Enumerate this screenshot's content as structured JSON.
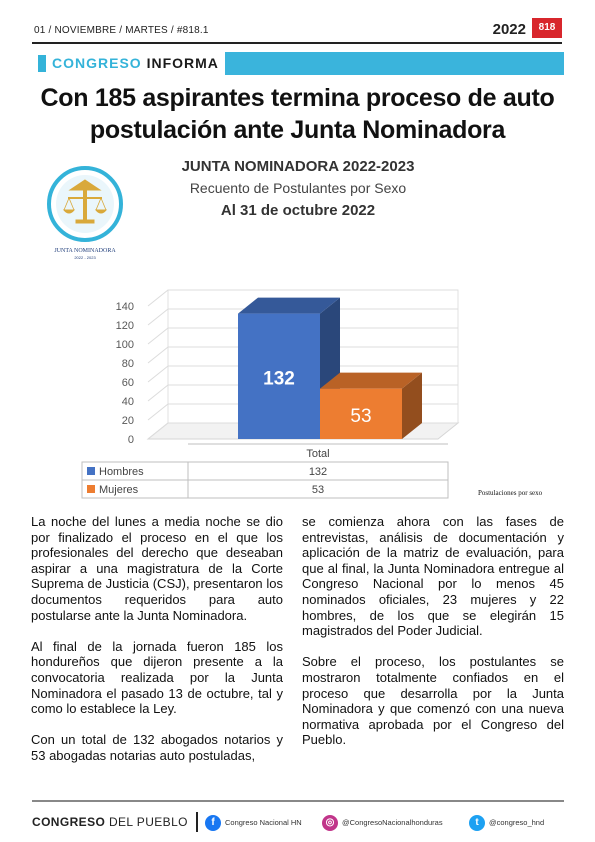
{
  "header": {
    "dateline": "01 / NOVIEMBRE /  MARTES / #818.1",
    "year": "2022",
    "issue": "818"
  },
  "section": {
    "part1": "CONGRESO",
    "part2": "INFORMA",
    "accent_color": "#34b3d9"
  },
  "headline": "Con 185 aspirantes termina proceso de auto postulación ante Junta Nominadora",
  "logo": {
    "name": "JUNTA NOMINADORA",
    "years": "2022 - 2023",
    "icon": "scales-of-justice-icon"
  },
  "chart_data": {
    "type": "bar",
    "title": "JUNTA NOMINADORA 2022-2023",
    "subtitle": "Recuento de Postulantes por Sexo",
    "date": "Al 31 de octubre 2022",
    "categories": [
      "Total"
    ],
    "series": [
      {
        "name": "Hombres",
        "values": [
          132
        ],
        "color": "#4472c4"
      },
      {
        "name": "Mujeres",
        "values": [
          53
        ],
        "color": "#ed7d31"
      }
    ],
    "y_ticks": [
      0,
      20,
      40,
      60,
      80,
      100,
      120,
      140
    ],
    "ylim": [
      0,
      140
    ],
    "grid": true,
    "legend": "data-table-below"
  },
  "caption": "Postulaciones por sexo",
  "body": {
    "left": [
      "La noche del lunes a media noche se dio por finalizado el proceso en el que los profesionales del derecho que deseaban aspirar a una magistratura de la Corte Suprema de Justicia (CSJ), presentaron los documentos requeridos para auto postularse ante la Junta Nominadora.",
      "Al final de la jornada fueron 185 los hondureños que dijeron presente a la convocatoria realizada por la Junta Nominadora el pasado 13 de octubre, tal y como lo establece la Ley.",
      "Con un total de 132 abogados notarios y 53 abogadas notarias auto postuladas,"
    ],
    "right": [
      "se comienza ahora con las fases de entrevistas, análisis de documentación y aplicación de la matriz de evaluación, para que al final, la Junta Nominadora entregue al Congreso Nacional por lo menos 45 nominados oficiales, 23 mujeres y 22 hombres, de los que se elegirán 15 magistrados del Poder Judicial.",
      "Sobre el proceso, los postulantes se mostraron totalmente confiados en el proceso que desarrolla por la Junta Nominadora y que comenzó con una nueva normativa aprobada por el Congreso del Pueblo."
    ]
  },
  "footer": {
    "brand_bold": "CONGRESO",
    "brand_rest": "DEL PUEBLO",
    "facebook": "Congreso Nacional HN",
    "instagram": "@CongresoNacionalhonduras",
    "twitter": "@congreso_hnd",
    "facebook_icon": "f",
    "instagram_icon": "◎",
    "twitter_icon": "t"
  }
}
